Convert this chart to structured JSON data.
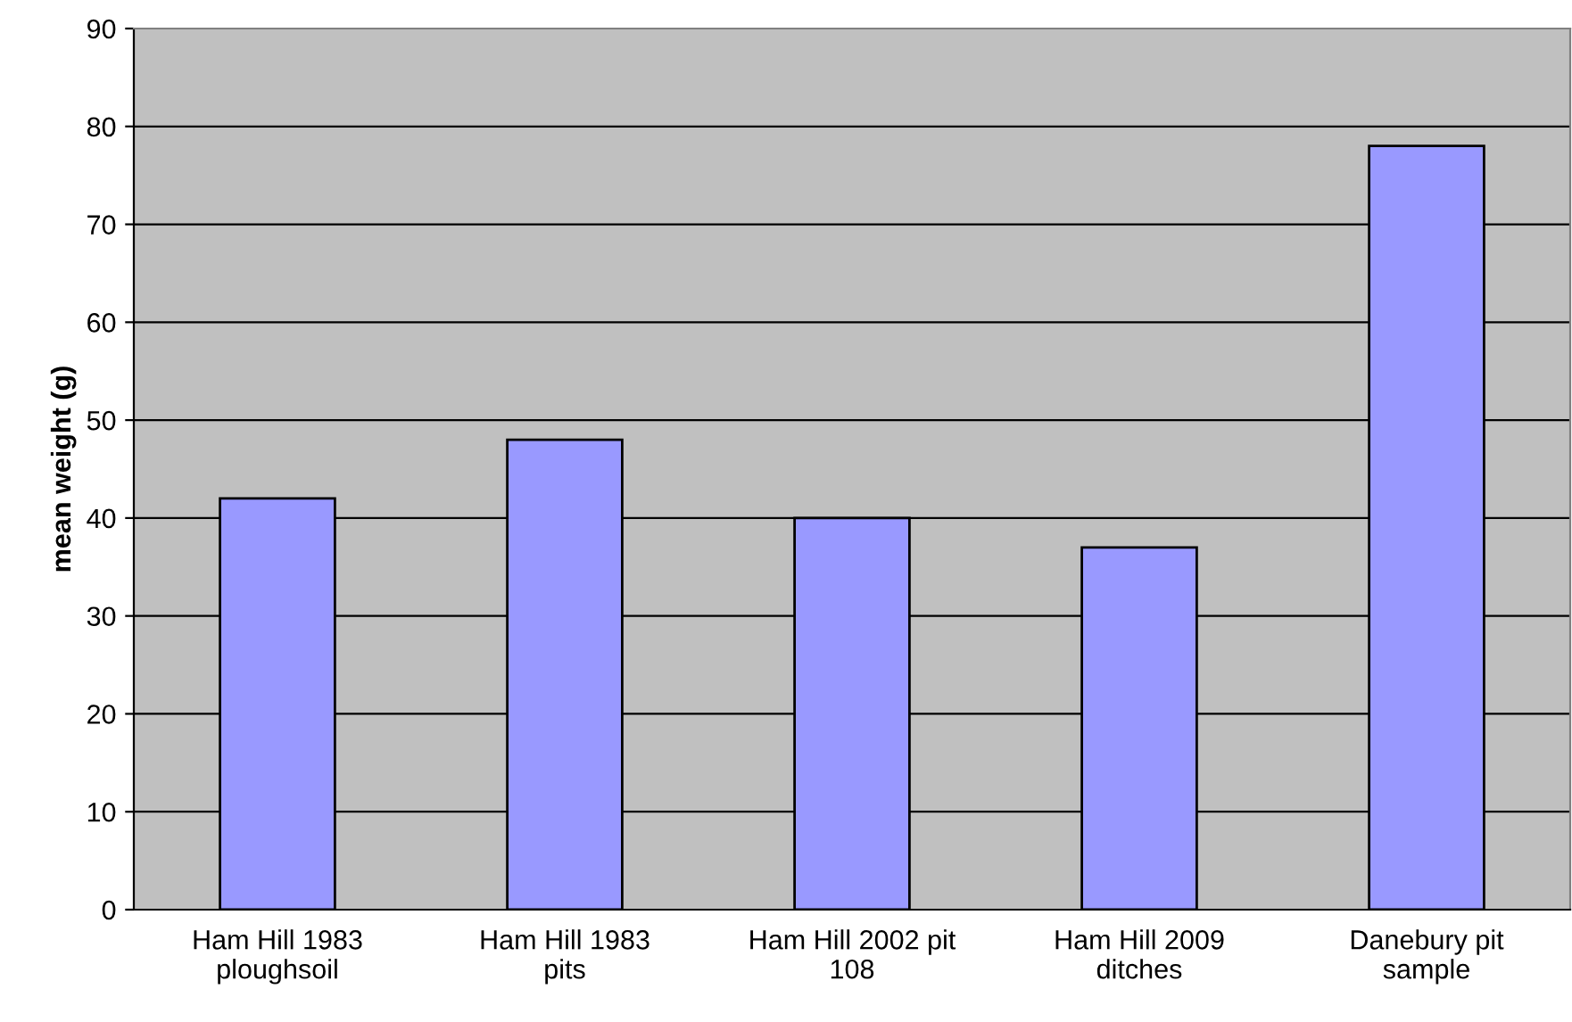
{
  "chart_data": {
    "type": "bar",
    "ylabel": "mean weight (g)",
    "categories": [
      "Ham Hill 1983 ploughsoil",
      "Ham Hill 1983 pits",
      "Ham Hill 2002 pit 108",
      "Ham Hill 2009 ditches",
      "Danebury pit sample"
    ],
    "values": [
      42,
      48,
      40,
      37,
      78
    ],
    "color": "#9999ff",
    "ylim": [
      0,
      90
    ],
    "yticks": [
      0,
      10,
      20,
      30,
      40,
      50,
      60,
      70,
      80,
      90
    ],
    "grid": "y"
  }
}
